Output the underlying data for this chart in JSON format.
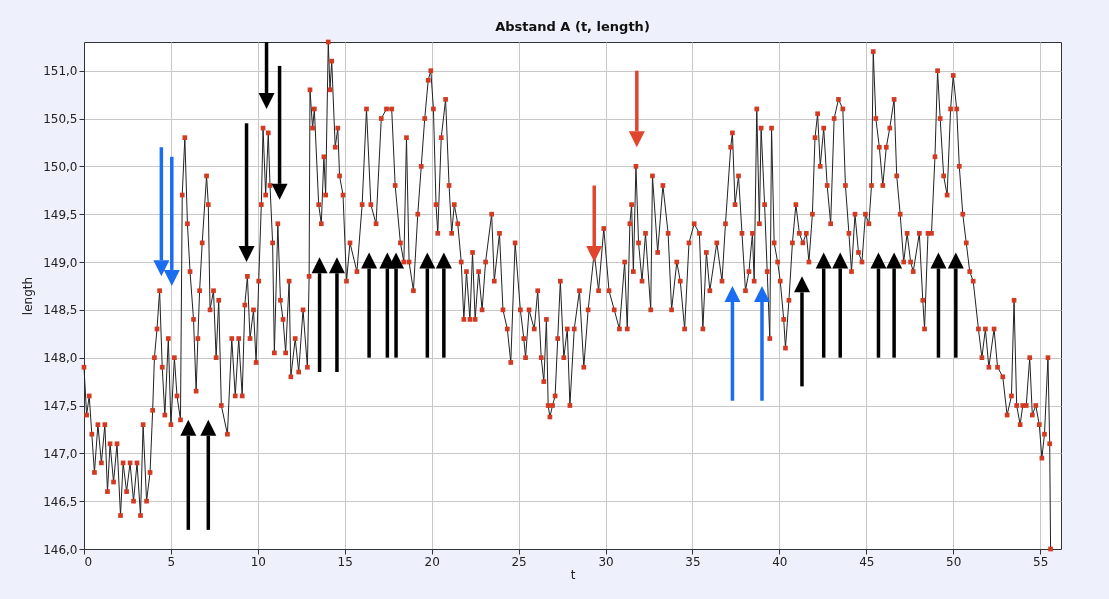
{
  "chart_data": {
    "type": "line",
    "title": "Abstand A (t, length)",
    "xlabel": "t",
    "ylabel": "length",
    "x": [
      0,
      0.15,
      0.3,
      0.45,
      0.6,
      0.8,
      1.0,
      1.2,
      1.35,
      1.5,
      1.7,
      1.9,
      2.1,
      2.25,
      2.45,
      2.65,
      2.85,
      3.05,
      3.25,
      3.4,
      3.6,
      3.8,
      3.95,
      4.05,
      4.2,
      4.35,
      4.5,
      4.65,
      4.85,
      5.0,
      5.2,
      5.35,
      5.55,
      5.65,
      5.8,
      5.95,
      6.1,
      6.3,
      6.45,
      6.55,
      6.65,
      6.8,
      7.05,
      7.15,
      7.25,
      7.45,
      7.6,
      7.75,
      7.9,
      8.25,
      8.5,
      8.7,
      8.9,
      9.1,
      9.25,
      9.4,
      9.55,
      9.75,
      9.9,
      10.05,
      10.2,
      10.3,
      10.45,
      10.6,
      10.7,
      10.85,
      10.95,
      11.15,
      11.3,
      11.45,
      11.6,
      11.8,
      11.9,
      12.15,
      12.35,
      12.6,
      12.85,
      12.95,
      13.0,
      13.15,
      13.25,
      13.5,
      13.65,
      13.8,
      13.9,
      14.05,
      14.15,
      14.25,
      14.45,
      14.6,
      14.7,
      14.9,
      15.1,
      15.3,
      15.7,
      16.0,
      16.25,
      16.5,
      16.8,
      17.1,
      17.4,
      17.7,
      17.9,
      18.2,
      18.4,
      18.55,
      18.7,
      18.95,
      19.2,
      19.4,
      19.6,
      19.8,
      19.95,
      20.1,
      20.25,
      20.35,
      20.55,
      20.8,
      21.0,
      21.15,
      21.3,
      21.5,
      21.7,
      21.85,
      22.0,
      22.2,
      22.35,
      22.5,
      22.7,
      22.9,
      23.1,
      23.45,
      23.6,
      23.9,
      24.1,
      24.35,
      24.55,
      24.8,
      25.1,
      25.3,
      25.4,
      25.6,
      25.9,
      26.1,
      26.3,
      26.45,
      26.6,
      26.7,
      26.8,
      26.95,
      27.1,
      27.25,
      27.4,
      27.6,
      27.8,
      27.95,
      28.2,
      28.5,
      28.75,
      29.0,
      29.35,
      29.6,
      29.9,
      30.2,
      30.5,
      30.8,
      31.1,
      31.25,
      31.4,
      31.5,
      31.6,
      31.75,
      31.9,
      32.1,
      32.3,
      32.6,
      32.7,
      33.0,
      33.3,
      33.6,
      33.8,
      34.1,
      34.3,
      34.55,
      34.8,
      35.1,
      35.4,
      35.6,
      35.8,
      36.0,
      36.4,
      36.7,
      36.9,
      37.2,
      37.3,
      37.45,
      37.65,
      37.85,
      38.05,
      38.25,
      38.45,
      38.55,
      38.7,
      38.85,
      38.95,
      39.15,
      39.3,
      39.45,
      39.55,
      39.7,
      39.9,
      40.05,
      40.25,
      40.35,
      40.55,
      40.75,
      40.95,
      41.15,
      41.35,
      41.55,
      41.7,
      41.9,
      42.05,
      42.2,
      42.35,
      42.55,
      42.75,
      42.95,
      43.15,
      43.4,
      43.65,
      43.8,
      44.0,
      44.15,
      44.35,
      44.55,
      44.75,
      44.95,
      45.15,
      45.3,
      45.4,
      45.55,
      45.75,
      45.95,
      46.15,
      46.35,
      46.6,
      46.75,
      46.95,
      47.15,
      47.35,
      47.55,
      47.7,
      48.05,
      48.25,
      48.35,
      48.55,
      48.75,
      48.95,
      49.1,
      49.25,
      49.45,
      49.65,
      49.85,
      50.0,
      50.2,
      50.35,
      50.55,
      50.75,
      50.95,
      51.15,
      51.45,
      51.65,
      51.85,
      52.05,
      52.35,
      52.55,
      52.85,
      53.1,
      53.35,
      53.5,
      53.65,
      53.85,
      54.0,
      54.2,
      54.4,
      54.55,
      54.75,
      54.95,
      55.1,
      55.25,
      55.45,
      55.55,
      55.6
    ],
    "series": [
      {
        "color": "#d23a22",
        "values": [
          147.9,
          147.4,
          147.6,
          147.2,
          146.8,
          147.3,
          146.9,
          147.3,
          146.6,
          147.1,
          146.7,
          147.1,
          146.35,
          146.9,
          146.6,
          146.9,
          146.5,
          146.9,
          146.35,
          147.3,
          146.5,
          146.8,
          147.45,
          148.0,
          148.3,
          148.7,
          147.9,
          147.4,
          148.2,
          147.3,
          148.0,
          147.6,
          147.35,
          149.7,
          150.3,
          149.4,
          148.9,
          148.4,
          147.65,
          148.2,
          148.7,
          149.2,
          149.9,
          149.6,
          148.5,
          148.7,
          148.0,
          148.6,
          147.5,
          147.2,
          148.2,
          147.6,
          148.2,
          147.6,
          148.55,
          148.85,
          148.2,
          148.5,
          147.95,
          148.8,
          149.6,
          150.4,
          149.7,
          150.35,
          149.8,
          149.2,
          148.05,
          149.4,
          148.6,
          148.4,
          148.05,
          148.8,
          147.8,
          148.2,
          147.85,
          148.5,
          147.9,
          148.85,
          150.8,
          150.4,
          150.6,
          149.6,
          149.4,
          150.1,
          149.7,
          151.3,
          150.8,
          151.1,
          150.2,
          150.4,
          149.9,
          149.7,
          148.8,
          149.2,
          148.9,
          149.6,
          150.6,
          149.6,
          149.4,
          150.5,
          150.6,
          150.6,
          149.8,
          149.2,
          149.0,
          150.3,
          149.0,
          148.7,
          149.5,
          150.0,
          150.5,
          150.9,
          151.0,
          150.6,
          149.6,
          149.3,
          150.3,
          150.7,
          149.8,
          149.3,
          149.6,
          149.4,
          149.0,
          148.4,
          148.9,
          148.4,
          149.1,
          148.4,
          148.9,
          148.5,
          149.0,
          149.5,
          148.8,
          149.3,
          148.5,
          148.3,
          147.95,
          149.2,
          148.5,
          148.2,
          148.0,
          148.5,
          148.3,
          148.7,
          148.0,
          147.75,
          148.4,
          147.5,
          147.38,
          147.5,
          147.6,
          148.2,
          148.8,
          148.0,
          148.3,
          147.5,
          148.3,
          148.7,
          147.9,
          148.5,
          149.1,
          148.7,
          149.35,
          148.7,
          148.5,
          148.3,
          149.0,
          148.3,
          149.4,
          149.6,
          148.9,
          150.0,
          149.2,
          148.8,
          149.3,
          148.5,
          149.9,
          149.1,
          149.8,
          149.3,
          148.5,
          149.0,
          148.8,
          148.3,
          149.2,
          149.4,
          149.3,
          148.3,
          149.1,
          148.7,
          149.2,
          148.8,
          149.4,
          150.2,
          150.35,
          149.6,
          149.9,
          149.3,
          148.7,
          148.9,
          149.3,
          148.8,
          150.6,
          149.4,
          150.4,
          149.6,
          148.9,
          148.2,
          150.4,
          149.2,
          149.0,
          148.8,
          148.4,
          148.1,
          148.6,
          149.2,
          149.6,
          149.3,
          149.2,
          149.3,
          149.0,
          149.5,
          150.3,
          150.55,
          150.0,
          150.4,
          149.8,
          149.4,
          150.5,
          150.7,
          150.6,
          149.8,
          149.3,
          148.9,
          149.5,
          149.1,
          149.0,
          149.5,
          149.4,
          149.8,
          151.2,
          150.5,
          150.2,
          149.8,
          150.2,
          150.4,
          150.7,
          149.9,
          149.5,
          149.0,
          149.3,
          149.0,
          148.9,
          149.3,
          148.6,
          148.3,
          149.3,
          149.3,
          150.1,
          151.0,
          150.5,
          149.9,
          149.7,
          150.6,
          150.95,
          150.6,
          150.0,
          149.5,
          149.2,
          148.9,
          148.8,
          148.3,
          148.0,
          148.3,
          147.9,
          148.3,
          147.9,
          147.8,
          147.4,
          147.6,
          148.6,
          147.5,
          147.3,
          147.5,
          147.5,
          148.0,
          147.4,
          147.5,
          147.3,
          146.95,
          147.2,
          148.0,
          147.1,
          146.0
        ]
      }
    ],
    "xlim": [
      0,
      56.2
    ],
    "ylim": [
      146,
      151.3
    ],
    "xticks": [
      0,
      5,
      10,
      15,
      20,
      25,
      30,
      35,
      40,
      45,
      50,
      55
    ],
    "yticks": [
      {
        "value": 146,
        "label": "146,0"
      },
      {
        "value": 146.5,
        "label": "146,5"
      },
      {
        "value": 147,
        "label": "147,0"
      },
      {
        "value": 147.5,
        "label": "147,5"
      },
      {
        "value": 148,
        "label": "148,0"
      },
      {
        "value": 148.5,
        "label": "148,5"
      },
      {
        "value": 149,
        "label": "149,0"
      },
      {
        "value": 149.5,
        "label": "149,5"
      },
      {
        "value": 150,
        "label": "150,0"
      },
      {
        "value": 150.5,
        "label": "150,5"
      },
      {
        "value": 151,
        "label": "151,0"
      }
    ],
    "grid": true,
    "marker": "square",
    "line_style": "solid"
  }
}
